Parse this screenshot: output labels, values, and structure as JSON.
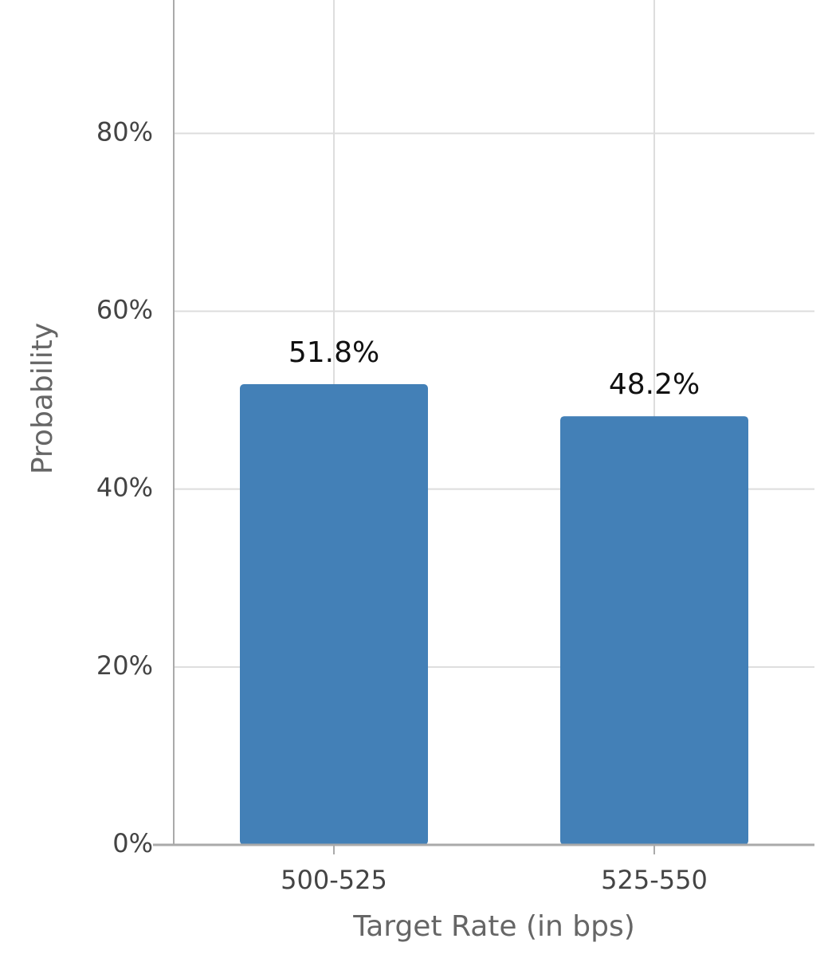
{
  "chart_data": {
    "type": "bar",
    "x_label": "Target Rate (in bps)",
    "y_label": "Probability",
    "categories": [
      "500-525",
      "525-550"
    ],
    "values": [
      51.8,
      48.2
    ],
    "value_labels": [
      "51.8%",
      "48.2%"
    ],
    "color": "#4380b7",
    "ylim": [
      0,
      95
    ],
    "yticks": [
      {
        "value": 0,
        "label": "0%"
      },
      {
        "value": 20,
        "label": "20%"
      },
      {
        "value": 40,
        "label": "40%"
      },
      {
        "value": 60,
        "label": "60%"
      },
      {
        "value": 80,
        "label": "80%"
      }
    ],
    "grid": true
  }
}
